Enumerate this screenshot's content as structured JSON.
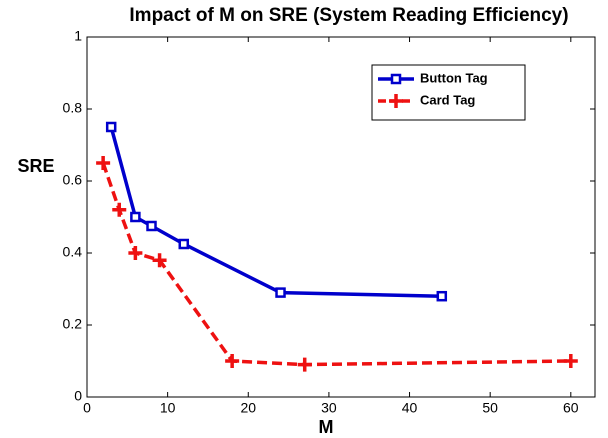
{
  "chart_data": {
    "type": "line",
    "title": "Impact of M on SRE (System Reading Efficiency)",
    "x_label": "M",
    "y_label": "SRE",
    "xlim": [
      0,
      63
    ],
    "xticks": [
      0,
      10,
      20,
      30,
      40,
      50,
      60
    ],
    "ylim": [
      0,
      1
    ],
    "yticks": [
      0,
      0.2,
      0.4,
      0.6,
      0.8,
      1
    ],
    "legend": "upper right",
    "series": [
      {
        "name": "Button Tag",
        "color": "#0000cc",
        "line_style": "solid",
        "marker": "square",
        "x": [
          3,
          6,
          8,
          12,
          24,
          44
        ],
        "values": [
          0.75,
          0.5,
          0.475,
          0.425,
          0.29,
          0.28
        ]
      },
      {
        "name": "Card Tag",
        "color": "#ee1111",
        "line_style": "dashed",
        "marker": "plus",
        "x": [
          2,
          4,
          6,
          9,
          18,
          27,
          60
        ],
        "values": [
          0.65,
          0.52,
          0.4,
          0.38,
          0.1,
          0.09,
          0.1
        ]
      }
    ]
  }
}
